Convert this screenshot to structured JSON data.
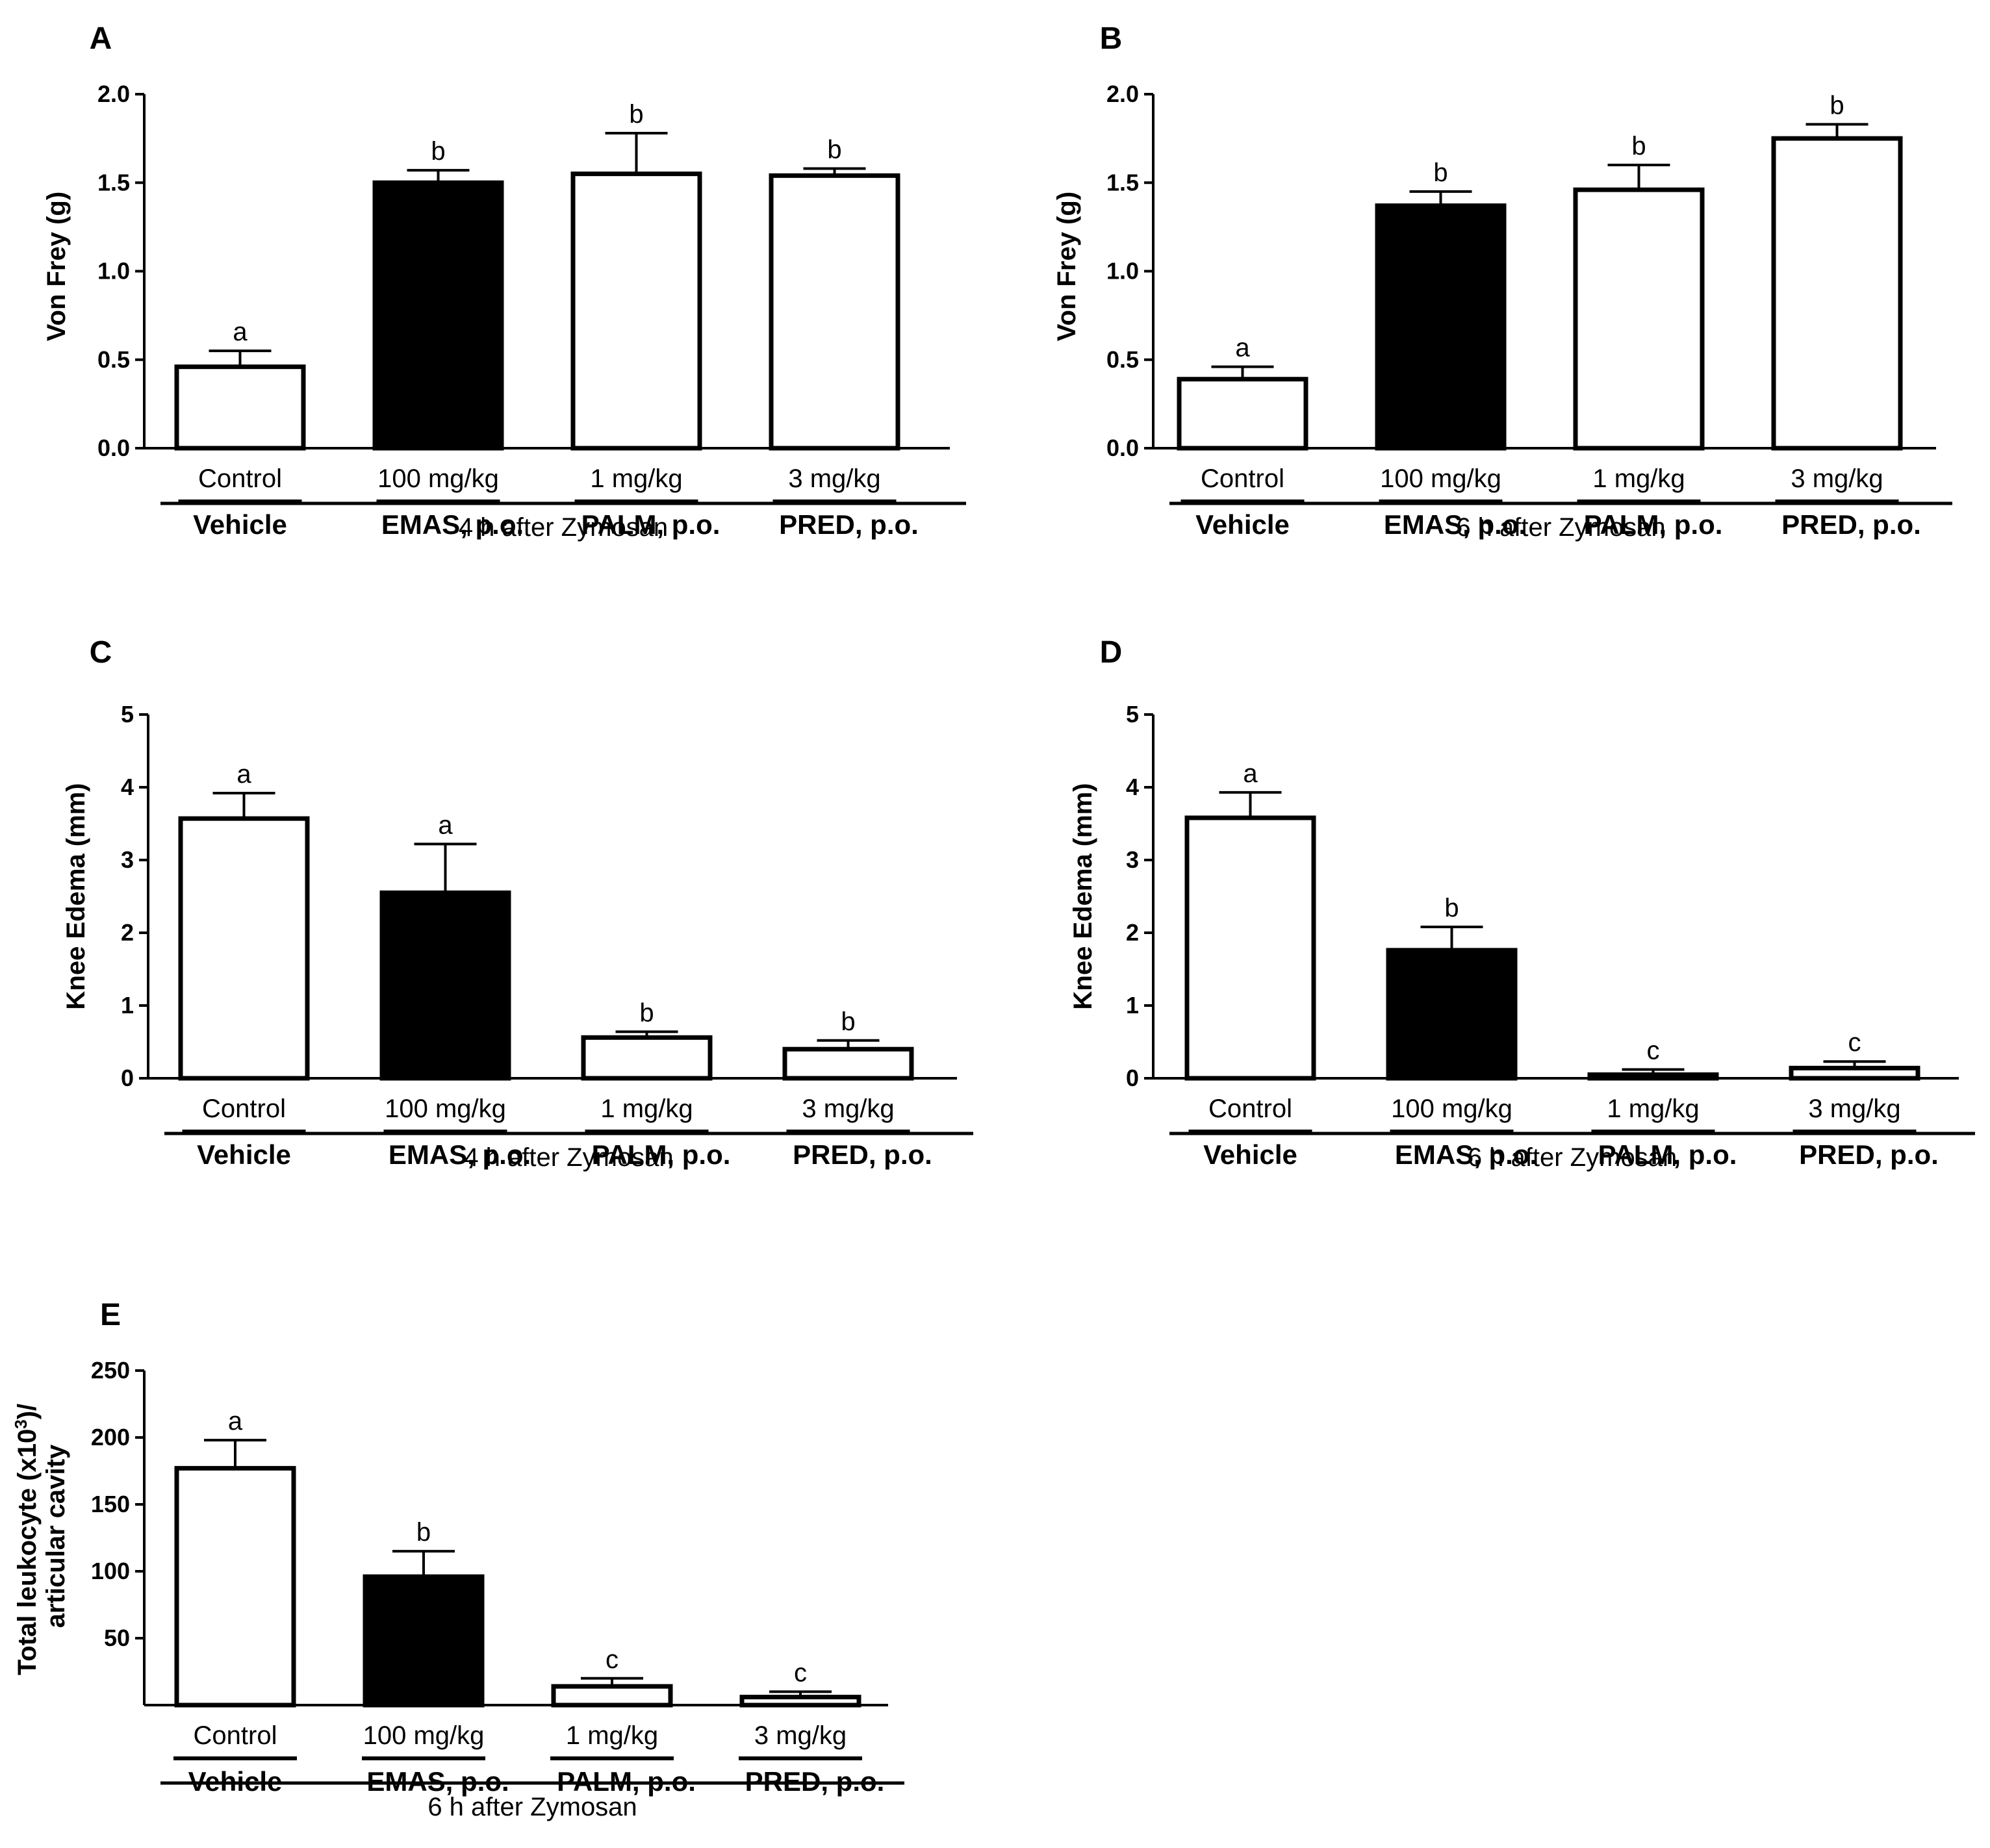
{
  "chart_data": [
    {
      "panel": "A",
      "type": "bar",
      "ylabel": "Von Frey (g)",
      "ylim": [
        0,
        2.0
      ],
      "yticks": [
        "0.0",
        "0.5",
        "1.0",
        "1.5",
        "2.0"
      ],
      "categories": [
        "Control",
        "100 mg/kg",
        "1 mg/kg",
        "3 mg/kg"
      ],
      "groups": [
        "Vehicle",
        "EMAS, p.o.",
        "PALM, p.o.",
        "PRED, p.o."
      ],
      "values": [
        0.46,
        1.5,
        1.55,
        1.54
      ],
      "errors": [
        0.09,
        0.07,
        0.23,
        0.04
      ],
      "letters": [
        "a",
        "b",
        "b",
        "b"
      ],
      "colors": [
        "#ffffff",
        "#000000",
        "#ffffff",
        "#ffffff"
      ],
      "footer": "4 h after Zymosan"
    },
    {
      "panel": "B",
      "type": "bar",
      "ylabel": "Von Frey (g)",
      "ylim": [
        0,
        2.0
      ],
      "yticks": [
        "0.0",
        "0.5",
        "1.0",
        "1.5",
        "2.0"
      ],
      "categories": [
        "Control",
        "100 mg/kg",
        "1 mg/kg",
        "3 mg/kg"
      ],
      "groups": [
        "Vehicle",
        "EMAS, p.o.",
        "PALM, p.o.",
        "PRED, p.o."
      ],
      "values": [
        0.39,
        1.37,
        1.46,
        1.75
      ],
      "errors": [
        0.07,
        0.08,
        0.14,
        0.08
      ],
      "letters": [
        "a",
        "b",
        "b",
        "b"
      ],
      "colors": [
        "#ffffff",
        "#000000",
        "#ffffff",
        "#ffffff"
      ],
      "footer": "6 h after Zymosan"
    },
    {
      "panel": "C",
      "type": "bar",
      "ylabel": "Knee Edema (mm)",
      "ylim": [
        0,
        5
      ],
      "yticks": [
        "0",
        "1",
        "2",
        "3",
        "4",
        "5"
      ],
      "categories": [
        "Control",
        "100 mg/kg",
        "1 mg/kg",
        "3 mg/kg"
      ],
      "groups": [
        "Vehicle",
        "EMAS, p.o.",
        "PALM, p.o.",
        "PRED, p.o."
      ],
      "values": [
        3.57,
        2.55,
        0.56,
        0.4
      ],
      "errors": [
        0.35,
        0.67,
        0.08,
        0.12
      ],
      "letters": [
        "a",
        "a",
        "b",
        "b"
      ],
      "colors": [
        "#ffffff",
        "#000000",
        "#ffffff",
        "#ffffff"
      ],
      "footer": "4 h after Zymosan"
    },
    {
      "panel": "D",
      "type": "bar",
      "ylabel": "Knee Edema (mm)",
      "ylim": [
        0,
        5
      ],
      "yticks": [
        "0",
        "1",
        "2",
        "3",
        "4",
        "5"
      ],
      "categories": [
        "Control",
        "100 mg/kg",
        "1 mg/kg",
        "3 mg/kg"
      ],
      "groups": [
        "Vehicle",
        "EMAS, p.o.",
        "PALM, p.o.",
        "PRED, p.o."
      ],
      "values": [
        3.58,
        1.76,
        0.05,
        0.14
      ],
      "errors": [
        0.35,
        0.32,
        0.07,
        0.09
      ],
      "letters": [
        "a",
        "b",
        "c",
        "c"
      ],
      "colors": [
        "#ffffff",
        "#000000",
        "#ffffff",
        "#ffffff"
      ],
      "footer": "6 h after Zymosan"
    },
    {
      "panel": "E",
      "type": "bar",
      "ylabel_line1": "Total leukocyte (x10",
      "ylabel_sup": "3",
      "ylabel_line1_end": ")/",
      "ylabel_line2": "articular cavity",
      "ylim": [
        0,
        250
      ],
      "yticks": [
        "50",
        "100",
        "150",
        "200",
        "250"
      ],
      "categories": [
        "Control",
        "100 mg/kg",
        "1 mg/kg",
        "3 mg/kg"
      ],
      "groups": [
        "Vehicle",
        "EMAS, p.o.",
        "PALM, p.o.",
        "PRED, p.o."
      ],
      "values": [
        177,
        96,
        14,
        6
      ],
      "errors": [
        21,
        19,
        6,
        4
      ],
      "letters": [
        "a",
        "b",
        "c",
        "c"
      ],
      "colors": [
        "#ffffff",
        "#000000",
        "#ffffff",
        "#ffffff"
      ],
      "footer": "6 h after Zymosan"
    }
  ]
}
